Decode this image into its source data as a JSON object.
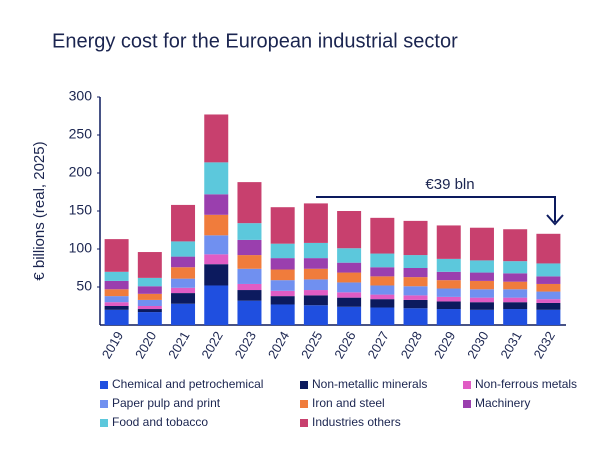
{
  "chart_data": {
    "type": "bar",
    "stacked": true,
    "title": "Energy cost for the European industrial sector",
    "y_label": "€ billions (real, 2025)",
    "annotation": "€39 bln",
    "categories": [
      "2019",
      "2020",
      "2021",
      "2022",
      "2023",
      "2024",
      "2025",
      "2026",
      "2027",
      "2028",
      "2029",
      "2030",
      "2031",
      "2032"
    ],
    "ylim": [
      0,
      300
    ],
    "yticks": [
      50,
      100,
      150,
      200,
      250,
      300
    ],
    "series": [
      {
        "name": "Chemical and petrochemical",
        "color": "#1f4fe0",
        "values": [
          20,
          17,
          28,
          52,
          32,
          27,
          26,
          24,
          23,
          22,
          21,
          20,
          21,
          20
        ]
      },
      {
        "name": "Non-metallic minerals",
        "color": "#0c1a5e",
        "values": [
          5,
          4,
          14,
          28,
          14,
          11,
          13,
          12,
          11,
          11,
          10,
          10,
          9,
          9
        ]
      },
      {
        "name": "Non-ferrous metals",
        "color": "#e05cc4",
        "values": [
          5,
          4,
          7,
          13,
          8,
          7,
          7,
          7,
          6,
          6,
          6,
          6,
          6,
          5
        ]
      },
      {
        "name": "Paper pulp and print",
        "color": "#7090f0",
        "values": [
          8,
          8,
          12,
          25,
          20,
          14,
          14,
          13,
          12,
          12,
          11,
          11,
          11,
          10
        ]
      },
      {
        "name": "Iron and steel",
        "color": "#f07c3c",
        "values": [
          9,
          8,
          15,
          27,
          18,
          14,
          14,
          13,
          12,
          12,
          11,
          11,
          10,
          10
        ]
      },
      {
        "name": "Machinery",
        "color": "#9a3fae",
        "values": [
          11,
          10,
          14,
          27,
          20,
          15,
          14,
          13,
          12,
          12,
          11,
          11,
          11,
          10
        ]
      },
      {
        "name": "Food and tobacco",
        "color": "#5cc8dc",
        "values": [
          12,
          11,
          20,
          42,
          22,
          19,
          20,
          19,
          18,
          17,
          17,
          16,
          16,
          17
        ]
      },
      {
        "name": "Industries others",
        "color": "#c8406e",
        "values": [
          43,
          34,
          48,
          63,
          54,
          48,
          52,
          49,
          47,
          45,
          44,
          43,
          42,
          39
        ]
      }
    ]
  }
}
